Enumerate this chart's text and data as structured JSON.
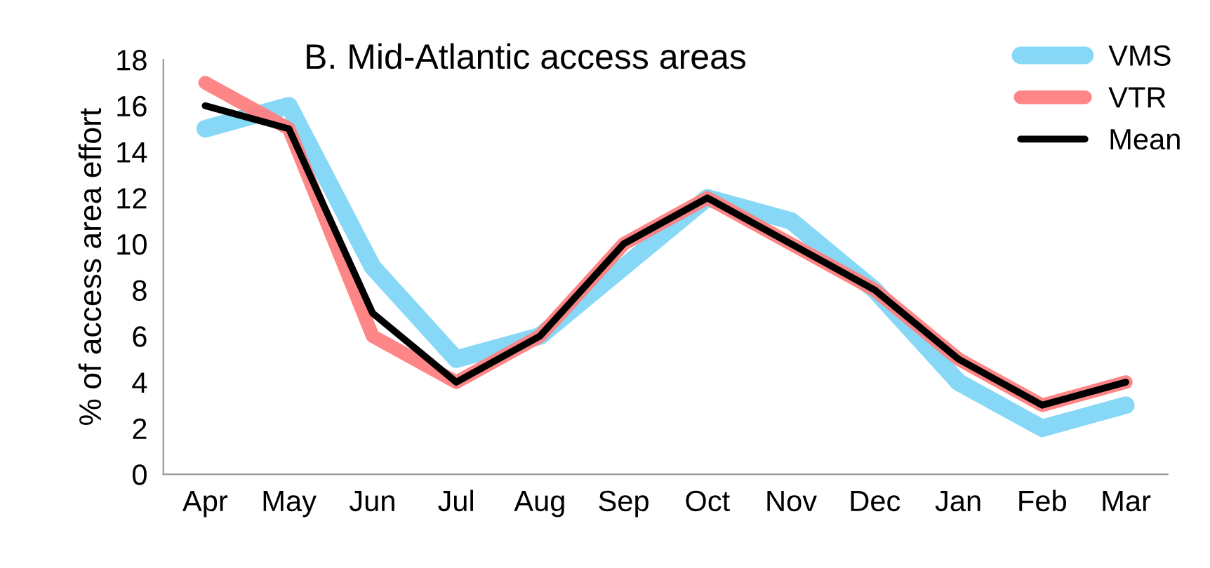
{
  "chart_data": {
    "type": "line",
    "title": "B. Mid-Atlantic access areas",
    "ylabel": "% of access area effort",
    "categories": [
      "Apr",
      "May",
      "Jun",
      "Jul",
      "Aug",
      "Sep",
      "Oct",
      "Nov",
      "Dec",
      "Jan",
      "Feb",
      "Mar"
    ],
    "series": [
      {
        "name": "VMS",
        "color": "#7fd6f5",
        "values": [
          15,
          16,
          9,
          5,
          6,
          9,
          12,
          11,
          8,
          4,
          2,
          3
        ]
      },
      {
        "name": "VTR",
        "color": "#ff7f7f",
        "values": [
          17,
          15,
          6,
          4,
          6,
          10,
          12,
          10,
          8,
          5,
          3,
          4
        ]
      },
      {
        "name": "Mean",
        "color": "#000000",
        "values": [
          16,
          15,
          7,
          4,
          6,
          10,
          12,
          10,
          8,
          5,
          3,
          4
        ]
      }
    ],
    "ylim": [
      0,
      18
    ],
    "yticks": [
      0,
      2,
      4,
      6,
      8,
      10,
      12,
      14,
      16,
      18
    ],
    "grid": false,
    "legend": "top right",
    "marker": "none",
    "line_style": "solid"
  }
}
